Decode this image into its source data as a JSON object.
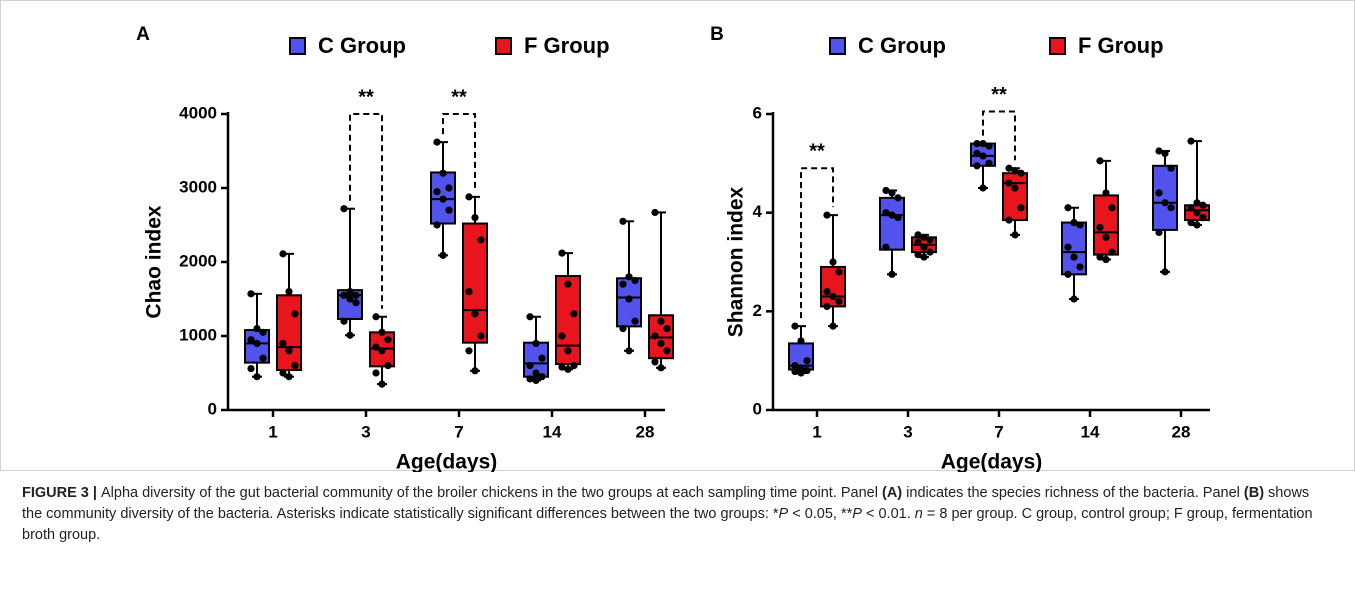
{
  "chart_data": [
    {
      "type": "box",
      "panel": "A",
      "y_label": "Chao index",
      "x_label": "Age(days)",
      "categories": [
        "1",
        "3",
        "7",
        "14",
        "28"
      ],
      "ylim": [
        0,
        4000
      ],
      "yticks": [
        0,
        1000,
        2000,
        3000,
        4000
      ],
      "series": [
        {
          "name": "C Group",
          "color": "#5252ec",
          "min": [
            450,
            1010,
            2090,
            400,
            800
          ],
          "q1": [
            640,
            1230,
            2520,
            450,
            1130
          ],
          "median": [
            900,
            1550,
            2850,
            630,
            1520
          ],
          "q3": [
            1080,
            1620,
            3210,
            910,
            1780
          ],
          "max": [
            1570,
            2720,
            3620,
            1260,
            2550
          ],
          "points": [
            [
              1570,
              1100,
              1050,
              950,
              900,
              700,
              560,
              450
            ],
            [
              2720,
              1600,
              1550,
              1550,
              1500,
              1450,
              1200,
              1010
            ],
            [
              3620,
              3200,
              3000,
              2950,
              2850,
              2700,
              2500,
              2090
            ],
            [
              1260,
              900,
              700,
              600,
              500,
              450,
              420,
              400
            ],
            [
              2550,
              1800,
              1750,
              1700,
              1500,
              1200,
              1100,
              800
            ]
          ]
        },
        {
          "name": "F Group",
          "color": "#e8141e",
          "min": [
            450,
            350,
            530,
            550,
            570
          ],
          "q1": [
            540,
            590,
            910,
            620,
            700
          ],
          "median": [
            850,
            830,
            1350,
            870,
            980
          ],
          "q3": [
            1550,
            1050,
            2520,
            1810,
            1280
          ],
          "max": [
            2110,
            1260,
            2880,
            2120,
            2670
          ],
          "points": [
            [
              2110,
              1600,
              1300,
              900,
              800,
              600,
              500,
              450
            ],
            [
              1260,
              1050,
              950,
              850,
              800,
              600,
              500,
              350
            ],
            [
              2880,
              2600,
              2300,
              1600,
              1300,
              1000,
              800,
              530
            ],
            [
              2120,
              1700,
              1300,
              1000,
              800,
              600,
              580,
              550
            ],
            [
              2670,
              1200,
              1100,
              1000,
              900,
              800,
              650,
              570
            ]
          ]
        }
      ],
      "annotations": [
        {
          "text": "**",
          "category": 1,
          "y": 4000
        },
        {
          "text": "**",
          "category": 2,
          "y": 4000
        }
      ]
    },
    {
      "type": "box",
      "panel": "B",
      "y_label": "Shannon index",
      "x_label": "Age(days)",
      "categories": [
        "1",
        "3",
        "7",
        "14",
        "28"
      ],
      "ylim": [
        0,
        6
      ],
      "yticks": [
        0,
        2,
        4,
        6
      ],
      "series": [
        {
          "name": "C Group",
          "color": "#5252ec",
          "min": [
            0.75,
            2.75,
            4.5,
            2.25,
            2.8
          ],
          "q1": [
            0.82,
            3.25,
            4.95,
            2.75,
            3.65
          ],
          "median": [
            0.9,
            3.95,
            5.15,
            3.2,
            4.2
          ],
          "q3": [
            1.35,
            4.3,
            5.4,
            3.8,
            4.95
          ],
          "max": [
            1.7,
            4.45,
            5.4,
            4.1,
            5.25
          ],
          "points": [
            [
              1.7,
              1.4,
              1.0,
              0.9,
              0.85,
              0.8,
              0.78,
              0.75
            ],
            [
              4.45,
              4.4,
              4.3,
              4.0,
              3.95,
              3.9,
              3.3,
              2.75
            ],
            [
              5.4,
              5.4,
              5.35,
              5.2,
              5.15,
              5.0,
              4.95,
              4.5
            ],
            [
              4.1,
              3.8,
              3.75,
              3.3,
              3.1,
              2.9,
              2.75,
              2.25
            ],
            [
              5.25,
              5.2,
              4.9,
              4.4,
              4.2,
              4.1,
              3.6,
              2.8
            ]
          ]
        },
        {
          "name": "F Group",
          "color": "#e8141e",
          "min": [
            1.7,
            3.1,
            3.55,
            3.05,
            3.75
          ],
          "q1": [
            2.1,
            3.2,
            3.85,
            3.15,
            3.85
          ],
          "median": [
            2.3,
            3.35,
            4.6,
            3.6,
            4.05
          ],
          "q3": [
            2.9,
            3.5,
            4.8,
            4.35,
            4.15
          ],
          "max": [
            3.95,
            3.55,
            4.9,
            5.05,
            5.45
          ],
          "points": [
            [
              3.95,
              3.0,
              2.8,
              2.4,
              2.3,
              2.2,
              2.1,
              1.7
            ],
            [
              3.55,
              3.5,
              3.45,
              3.4,
              3.3,
              3.2,
              3.15,
              3.1
            ],
            [
              4.9,
              4.85,
              4.8,
              4.6,
              4.5,
              4.1,
              3.85,
              3.55
            ],
            [
              5.05,
              4.4,
              4.1,
              3.7,
              3.5,
              3.2,
              3.1,
              3.05
            ],
            [
              5.45,
              4.2,
              4.15,
              4.1,
              4.0,
              3.9,
              3.8,
              3.75
            ]
          ]
        }
      ],
      "annotations": [
        {
          "text": "**",
          "category": 0,
          "y": 4.9
        },
        {
          "text": "**",
          "category": 2,
          "y": 6.05
        }
      ]
    }
  ],
  "caption": [
    {
      "text": "FIGURE 3 | ",
      "style": "bold"
    },
    {
      "text": "Alpha diversity of the gut bacterial community of the broiler chickens in the two groups at each sampling time point. Panel ",
      "style": "normal"
    },
    {
      "text": "(A)",
      "style": "bold"
    },
    {
      "text": " indicates the species richness of the bacteria. Panel ",
      "style": "normal"
    },
    {
      "text": "(B)",
      "style": "bold"
    },
    {
      "text": " shows the community diversity of the bacteria. Asterisks indicate statistically significant differences between the two groups: *",
      "style": "normal"
    },
    {
      "text": "P",
      "style": "italic"
    },
    {
      "text": " < 0.05, **",
      "style": "normal"
    },
    {
      "text": "P",
      "style": "italic"
    },
    {
      "text": " < 0.01. ",
      "style": "normal"
    },
    {
      "text": "n",
      "style": "italic"
    },
    {
      "text": " = 8 per group. C group, control group; F group, fermentation broth group.",
      "style": "normal"
    }
  ]
}
